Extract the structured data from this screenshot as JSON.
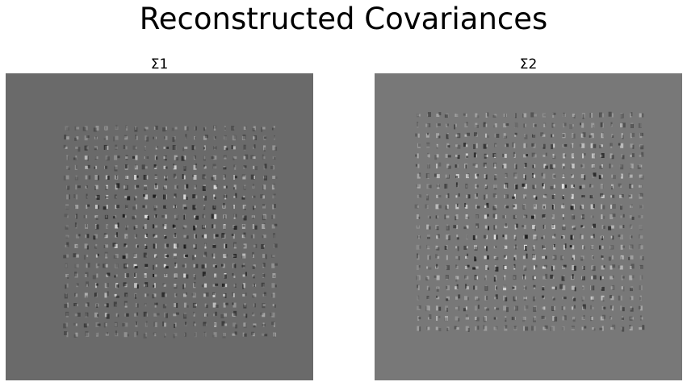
{
  "figure": {
    "title": "Reconstructed Covariances"
  },
  "panels": [
    {
      "title": "Σ1",
      "background_color": "#6a6a6a"
    },
    {
      "title": "Σ2",
      "background_color": "#787878"
    }
  ]
}
